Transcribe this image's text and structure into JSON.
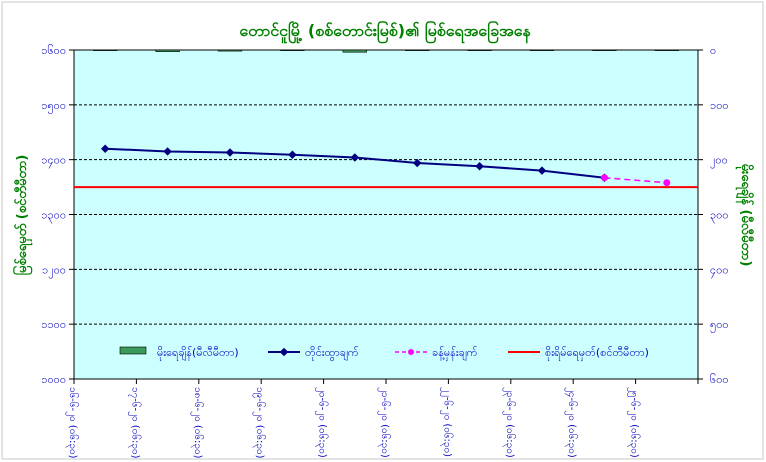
{
  "chart_data": {
    "type": "line",
    "title": "တောင်ငူမြို့ (စစ်တောင်းမြစ်)၏ မြစ်ရေအခြေအနေ",
    "ylabel_left": "မြစ်ရေမှတ် (စင်တီမီတာ)",
    "ylabel_right": "မိုးရေချိန် (မီလီမီတာ)",
    "left_axis": {
      "min": 1000,
      "max": 1600,
      "step": 100,
      "tick_labels": [
        "၁၀၀၀",
        "၁၁၀၀",
        "၁၂၀၀",
        "၁၃၀၀",
        "၁၄၀၀",
        "၁၅၀၀",
        "၁၆၀၀"
      ]
    },
    "right_axis": {
      "min": 0,
      "max": 600,
      "step": 100,
      "reversed": true,
      "tick_labels": [
        "၀",
        "၁၀၀",
        "၂၀၀",
        "၃၀၀",
        "၄၀၀",
        "၅၀၀",
        "၆၀၀"
      ]
    },
    "categories": [
      "၁၆-၆-၂၀ (၀၆:၃၀)",
      "၁၇-၆-၂၀ (၀၆:၃၀)",
      "၁၈-၆-၂၀ (၀၆:၃၀)",
      "၁၉-၆-၂၀ (၀၆:၃၀)",
      "၂၀-၆-၂၀ (၀၆:၃၀)",
      "၂၁-၆-၂၀ (၀၆:၃၀)",
      "၂၂-၆-၂၀ (၀၆:၃၀)",
      "၂၃-၆-၂၀ (၀၆:၃၀)",
      "၂၄-၆-၂၀ (၀၆:၃၀)",
      "၂၅-၆-၂၀ (၀၆:၃၀)"
    ],
    "series": [
      {
        "name": "မိုးရေချိန်(မီလီမီတာ)",
        "kind": "bar",
        "axis": "right",
        "color": "#3a9a5b",
        "values": [
          0,
          3,
          2,
          1,
          4,
          1,
          0,
          0,
          0,
          0
        ]
      },
      {
        "name": "တိုင်းထွာချက်",
        "kind": "line",
        "axis": "left",
        "color": "#000080",
        "values": [
          1420,
          1415,
          1413,
          1409,
          1404,
          1394,
          1388,
          1380,
          1367,
          null
        ]
      },
      {
        "name": "ခန့်မှန်းချက်",
        "kind": "dashed",
        "axis": "left",
        "color": "#ff00ff",
        "values": [
          null,
          null,
          null,
          null,
          null,
          null,
          null,
          null,
          1367,
          1358
        ]
      },
      {
        "name": "စိုးရိမ်ရေမှတ်(စင်တီမီတာ)",
        "kind": "threshold",
        "axis": "left",
        "color": "#ff0000",
        "value": 1350
      }
    ],
    "grid": "horizontal dashed",
    "legend_placement": "bottom-inside",
    "colors": {
      "plot_bg": "#ccffff",
      "axis_text": "#0000c0",
      "title": "#008000",
      "ylabel": "#008000"
    }
  }
}
